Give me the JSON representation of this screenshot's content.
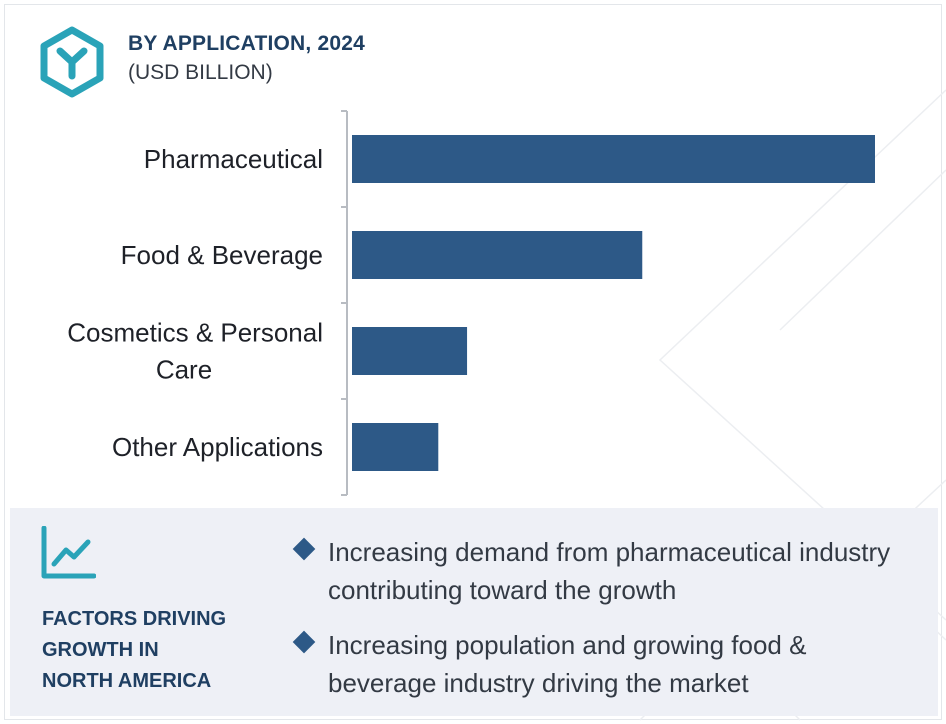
{
  "header": {
    "title": "BY APPLICATION, 2024",
    "subtitle": "(USD BILLION)",
    "logo_icon": "hexagon-y-logo-icon"
  },
  "chart_data": {
    "type": "bar",
    "orientation": "horizontal",
    "categories": [
      "Pharmaceutical",
      "Food & Beverage",
      "Cosmetics & Personal Care",
      "Other Applications"
    ],
    "category_lines": [
      [
        "Pharmaceutical"
      ],
      [
        "Food & Beverage"
      ],
      [
        "Cosmetics & Personal",
        "Care"
      ],
      [
        "Other Applications"
      ]
    ],
    "values": [
      100,
      55.5,
      22,
      16.5
    ],
    "xlim": [
      0,
      100
    ],
    "value_note": "relative bar lengths (no axis values printed)",
    "bar_color": "#2d5987",
    "axis_color": "#b8bcc2",
    "grid": false,
    "legend": "none"
  },
  "factors": {
    "icon": "line-chart-trend-icon",
    "title_lines": [
      "FACTORS DRIVING",
      "GROWTH IN",
      "NORTH AMERICA"
    ],
    "bullets": [
      {
        "icon": "diamond-bullet-icon",
        "text": "Increasing demand from pharmaceutical industry contributing toward the growth"
      },
      {
        "icon": "diamond-bullet-icon",
        "text": "Increasing population and growing food & beverage industry driving the market"
      }
    ]
  },
  "colors": {
    "accent": "#2aa3b8",
    "heading": "#1f3f62",
    "bar": "#2d5987",
    "panel_bg": "#eef0f6"
  }
}
